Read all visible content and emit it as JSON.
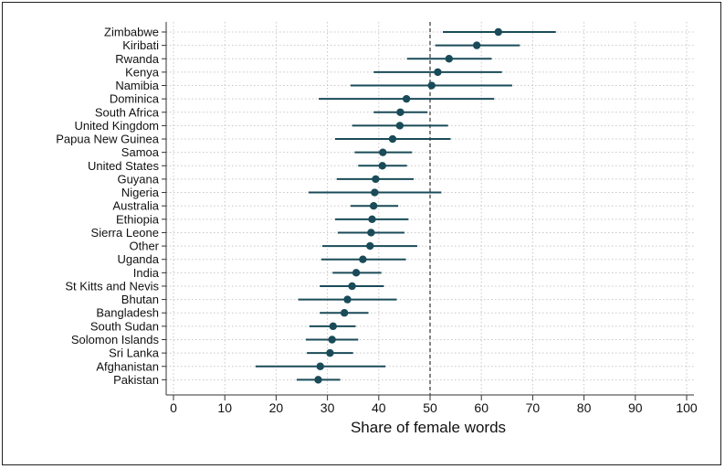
{
  "chart_data": {
    "type": "scatter",
    "subtype": "dot-with-confidence-interval",
    "title": "",
    "xlabel": "Share of female words",
    "ylabel": "",
    "xlim": [
      0,
      100
    ],
    "xticks": [
      0,
      10,
      20,
      30,
      40,
      50,
      60,
      70,
      80,
      90,
      100
    ],
    "reference_line": {
      "x": 50,
      "style": "dashed"
    },
    "grid": true,
    "legend": "none",
    "colors": {
      "marker": "#1a4b58",
      "interval": "#1a4b58",
      "grid": "#c8c8c8",
      "reference": "#666666"
    },
    "categories": [
      "Zimbabwe",
      "Kiribati",
      "Rwanda",
      "Kenya",
      "Namibia",
      "Dominica",
      "South Africa",
      "United Kingdom",
      "Papua New Guinea",
      "Samoa",
      "United States",
      "Guyana",
      "Nigeria",
      "Australia",
      "Ethiopia",
      "Sierra Leone",
      "Other",
      "Uganda",
      "India",
      "St Kitts and Nevis",
      "Bhutan",
      "Bangladesh",
      "South Sudan",
      "Solomon Islands",
      "Sri Lanka",
      "Afghanistan",
      "Pakistan"
    ],
    "values": [
      63.3,
      59.1,
      53.7,
      51.5,
      50.3,
      45.4,
      44.2,
      44.1,
      42.7,
      40.8,
      40.7,
      39.4,
      39.2,
      39.0,
      38.7,
      38.5,
      38.3,
      36.9,
      35.6,
      34.8,
      33.9,
      33.3,
      31.1,
      30.9,
      30.5,
      28.6,
      28.2
    ],
    "ci_low": [
      52.5,
      51.0,
      45.5,
      39.0,
      34.5,
      28.3,
      39.0,
      34.8,
      31.5,
      35.3,
      36.0,
      31.8,
      26.3,
      34.5,
      31.5,
      32.0,
      29.0,
      28.8,
      31.0,
      28.5,
      24.3,
      28.5,
      26.5,
      25.8,
      26.0,
      16.0,
      24.0
    ],
    "ci_high": [
      74.5,
      67.5,
      62.0,
      64.0,
      66.0,
      62.5,
      49.5,
      53.5,
      54.0,
      46.5,
      45.5,
      46.8,
      52.2,
      43.8,
      45.8,
      45.0,
      47.5,
      45.3,
      40.5,
      41.0,
      43.5,
      38.0,
      35.5,
      36.0,
      35.0,
      41.3,
      32.5
    ]
  }
}
